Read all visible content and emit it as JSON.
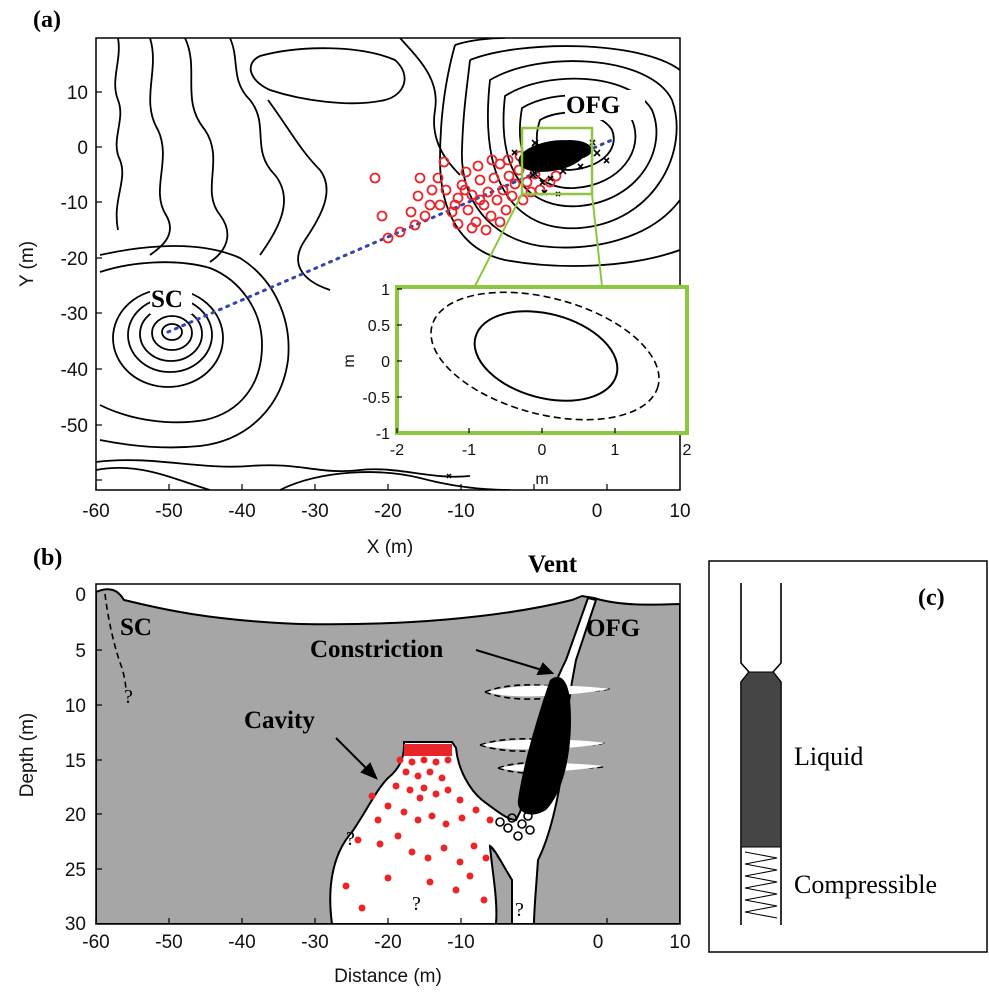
{
  "panels": {
    "a": "(a)",
    "b": "(b)",
    "c": "(c)"
  },
  "map": {
    "ylabel": "Y (m)",
    "xlabel": "X (m)",
    "xticks": [
      "-60",
      "-50",
      "-40",
      "-30",
      "-20",
      "-10",
      "0",
      "10"
    ],
    "yticks": [
      "10",
      "0",
      "-10",
      "-20",
      "-30",
      "-40",
      "-50"
    ],
    "labels": {
      "sc": "SC",
      "ofg": "OFG"
    },
    "colors": {
      "red_markers": "#e8262a",
      "black_markers": "#000000",
      "dotted_line": "#3344aa",
      "inset_frame": "#8dc63f"
    }
  },
  "inset": {
    "xlabel": "m",
    "ylabel": "m",
    "xticks": [
      "-2",
      "-1",
      "0",
      "1",
      "2"
    ],
    "yticks": [
      "1",
      "0.5",
      "0",
      "-0.5",
      "-1"
    ]
  },
  "section": {
    "ylabel": "Depth (m)",
    "xlabel": "Distance (m)",
    "xticks": [
      "-60",
      "-50",
      "-40",
      "-30",
      "-20",
      "-10",
      "0",
      "10"
    ],
    "yticks": [
      "0",
      "5",
      "10",
      "15",
      "20",
      "25",
      "30"
    ],
    "labels": {
      "vent": "Vent",
      "sc": "SC",
      "ofg": "OFG",
      "constriction": "Constriction",
      "cavity": "Cavity",
      "q1": "?",
      "q2": "?",
      "q3": "?",
      "q4": "?"
    },
    "colors": {
      "rock": "#a6a6a6"
    }
  },
  "model": {
    "liquid": "Liquid",
    "compressible": "Compressible",
    "colors": {
      "liquid": "#454545"
    }
  }
}
